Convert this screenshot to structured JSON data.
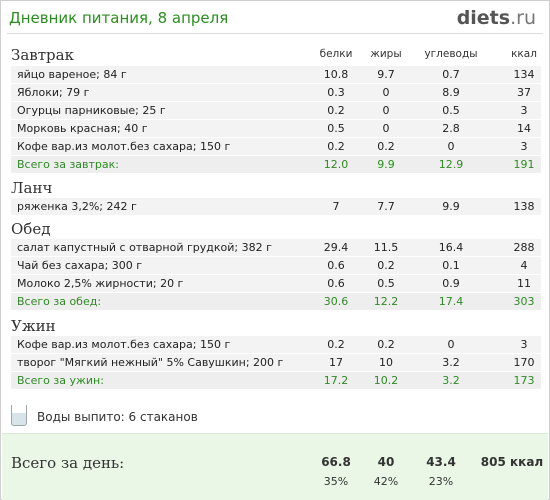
{
  "header": {
    "title": "Дневник питания, 8 апреля",
    "logo_main": "diets",
    "logo_tld": ".ru"
  },
  "columns": {
    "proteins": "белки",
    "fats": "жиры",
    "carbs": "углеводы",
    "kcal": "ккал"
  },
  "sections": [
    {
      "title": "Завтрак",
      "items": [
        {
          "name": "яйцо вареное; 84 г",
          "p": "10.8",
          "f": "9.7",
          "c": "0.7",
          "k": "134"
        },
        {
          "name": "Яблоки; 79 г",
          "p": "0.3",
          "f": "0",
          "c": "8.9",
          "k": "37"
        },
        {
          "name": "Огурцы парниковые; 25 г",
          "p": "0.2",
          "f": "0",
          "c": "0.5",
          "k": "3"
        },
        {
          "name": "Морковь красная; 40 г",
          "p": "0.5",
          "f": "0",
          "c": "2.8",
          "k": "14"
        },
        {
          "name": "Кофе вар.из молот.без сахара; 150 г",
          "p": "0.2",
          "f": "0.2",
          "c": "0",
          "k": "3"
        }
      ],
      "total": {
        "name": "Всего за завтрак:",
        "p": "12.0",
        "f": "9.9",
        "c": "12.9",
        "k": "191"
      }
    },
    {
      "title": "Ланч",
      "items": [
        {
          "name": "ряженка 3,2%; 242 г",
          "p": "7",
          "f": "7.7",
          "c": "9.9",
          "k": "138"
        }
      ],
      "total": null
    },
    {
      "title": "Обед",
      "items": [
        {
          "name": "салат капустный с отварной грудкой; 382 г",
          "p": "29.4",
          "f": "11.5",
          "c": "16.4",
          "k": "288"
        },
        {
          "name": "Чай без сахара; 300 г",
          "p": "0.6",
          "f": "0.2",
          "c": "0.1",
          "k": "4"
        },
        {
          "name": "Молоко 2,5% жирности; 20 г",
          "p": "0.6",
          "f": "0.5",
          "c": "0.9",
          "k": "11"
        }
      ],
      "total": {
        "name": "Всего за обед:",
        "p": "30.6",
        "f": "12.2",
        "c": "17.4",
        "k": "303"
      }
    },
    {
      "title": "Ужин",
      "items": [
        {
          "name": "Кофе вар.из молот.без сахара; 150 г",
          "p": "0.2",
          "f": "0.2",
          "c": "0",
          "k": "3"
        },
        {
          "name": "творог \"Мягкий нежный\" 5% Савушкин; 200 г",
          "p": "17",
          "f": "10",
          "c": "3.2",
          "k": "170"
        }
      ],
      "total": {
        "name": "Всего за ужин:",
        "p": "17.2",
        "f": "10.2",
        "c": "3.2",
        "k": "173"
      }
    }
  ],
  "water": {
    "icon": "glass-icon",
    "text": "Воды выпито: 6 стаканов"
  },
  "day": {
    "label": "Всего за день:",
    "p": "66.8",
    "f": "40",
    "c": "43.4",
    "k": "805 ккал",
    "pp": "35%",
    "fp": "42%",
    "cp": "23%"
  },
  "colors": {
    "accent": "#2e8b23",
    "row_bg": "#f3f3f3",
    "day_bg": "#eaf7e6"
  }
}
